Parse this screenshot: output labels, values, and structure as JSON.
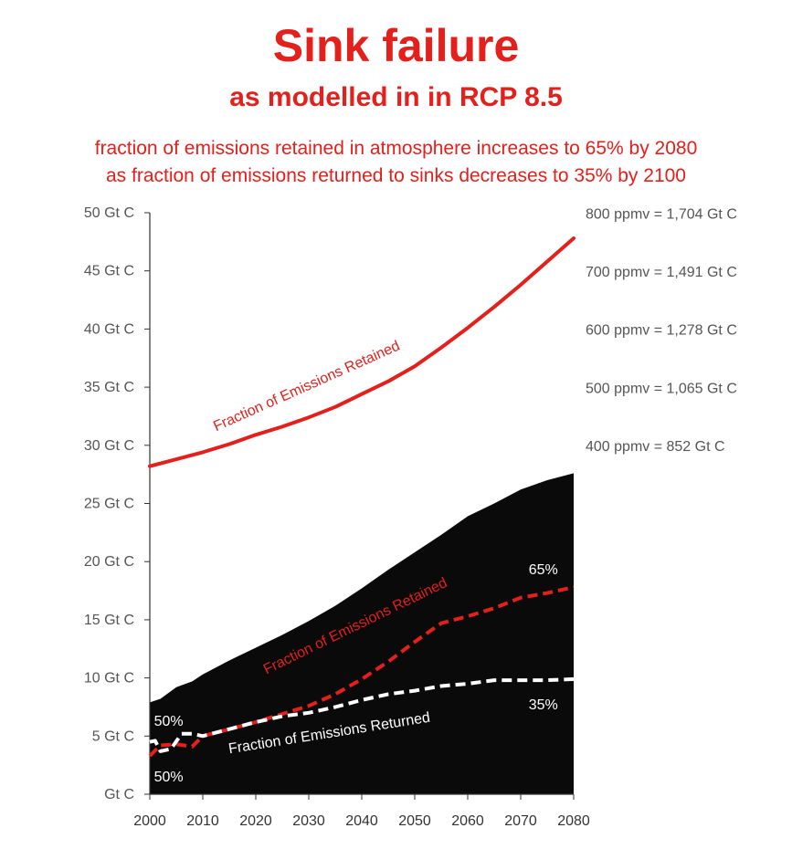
{
  "title": "Sink failure",
  "subtitle": "as modelled in in RCP 8.5",
  "notes": [
    "fraction of emissions retained in atmosphere increases to 65% by 2080",
    "as fraction of emissions returned to sinks decreases to 35% by 2100"
  ],
  "colors": {
    "accent": "#e3201b",
    "area": "#0a0a0a",
    "white": "#ffffff"
  },
  "chart_data": {
    "type": "line",
    "xlim": [
      2000,
      2080
    ],
    "ylim": [
      0,
      50
    ],
    "x_ticks": [
      2000,
      2010,
      2020,
      2030,
      2040,
      2050,
      2060,
      2070,
      2080
    ],
    "y_tick_labels": [
      "Gt C",
      "5 Gt C",
      "10 Gt C",
      "15 Gt C",
      "20 Gt C",
      "25 Gt C",
      "30 Gt C",
      "35 Gt C",
      "40 Gt C",
      "45 Gt C",
      "50 Gt C"
    ],
    "right_axis_labels": [
      {
        "y": 29.9,
        "label": "400 ppmv = 852 Gt C"
      },
      {
        "y": 34.9,
        "label": "500 ppmv = 1,065 Gt C"
      },
      {
        "y": 39.9,
        "label": "600 ppmv = 1,278 Gt C"
      },
      {
        "y": 44.9,
        "label": "700 ppmv = 1,491 Gt C"
      },
      {
        "y": 49.9,
        "label": "800 ppmv = 1,704 Gt C"
      }
    ],
    "series": [
      {
        "name": "Fraction of Emissions Retained",
        "kind": "solid-line",
        "x": [
          2000,
          2005,
          2010,
          2015,
          2020,
          2025,
          2030,
          2035,
          2040,
          2045,
          2050,
          2055,
          2060,
          2065,
          2070,
          2075,
          2080
        ],
        "y": [
          28.2,
          28.8,
          29.4,
          30.1,
          30.9,
          31.6,
          32.4,
          33.3,
          34.4,
          35.5,
          36.8,
          38.4,
          40.1,
          41.9,
          43.8,
          45.8,
          47.8
        ]
      },
      {
        "name": "",
        "kind": "filled-area",
        "x": [
          2000,
          2002,
          2005,
          2008,
          2010,
          2015,
          2020,
          2025,
          2030,
          2035,
          2040,
          2045,
          2050,
          2055,
          2060,
          2065,
          2070,
          2075,
          2080
        ],
        "y": [
          7.9,
          8.2,
          9.2,
          9.7,
          10.3,
          11.5,
          12.6,
          13.7,
          14.9,
          16.2,
          17.7,
          19.3,
          20.8,
          22.3,
          23.9,
          25.0,
          26.2,
          27.0,
          27.6
        ]
      },
      {
        "name": "Fraction of Emissions Retained",
        "kind": "dashed-line",
        "x": [
          2000,
          2002,
          2005,
          2008,
          2010,
          2015,
          2020,
          2025,
          2030,
          2035,
          2040,
          2045,
          2050,
          2055,
          2060,
          2065,
          2070,
          2075,
          2080
        ],
        "y": [
          3.3,
          4.2,
          4.3,
          4.1,
          5.0,
          5.6,
          6.2,
          6.9,
          7.6,
          8.6,
          9.9,
          11.4,
          13.1,
          14.7,
          15.3,
          16.0,
          16.9,
          17.3,
          17.8
        ]
      },
      {
        "name": "Fraction of Emissions Returned",
        "kind": "dashed-line",
        "x": [
          2000,
          2001,
          2002,
          2004,
          2006,
          2008,
          2010,
          2015,
          2020,
          2025,
          2030,
          2035,
          2040,
          2045,
          2050,
          2055,
          2060,
          2065,
          2070,
          2075,
          2080
        ],
        "y": [
          4.5,
          4.6,
          3.7,
          3.9,
          5.2,
          5.2,
          5.0,
          5.6,
          6.2,
          6.7,
          7.0,
          7.5,
          8.1,
          8.6,
          8.9,
          9.3,
          9.5,
          9.8,
          9.8,
          9.8,
          9.9
        ]
      }
    ],
    "annotations": [
      {
        "text": "50%",
        "x": 2000.8,
        "y": 5.9,
        "color": "#ffffff"
      },
      {
        "text": "50%",
        "x": 2000.8,
        "y": 1.1,
        "color": "#ffffff"
      },
      {
        "text": "65%",
        "x": 2071.5,
        "y": 18.9,
        "color": "#ffffff"
      },
      {
        "text": "35%",
        "x": 2071.5,
        "y": 7.3,
        "color": "#ffffff"
      }
    ],
    "series_labels": [
      {
        "text": "Fraction of Emissions Retained",
        "x": 2012.5,
        "y": 31.2,
        "angle": -24,
        "color": "#e3201b"
      },
      {
        "text": "Fraction of Emissions Retained",
        "x": 2022,
        "y": 10.3,
        "angle": -26,
        "color": "#e3201b"
      },
      {
        "text": "Fraction of Emissions Returned",
        "x": 2015,
        "y": 3.5,
        "angle": -9,
        "color": "#ffffff"
      }
    ]
  }
}
